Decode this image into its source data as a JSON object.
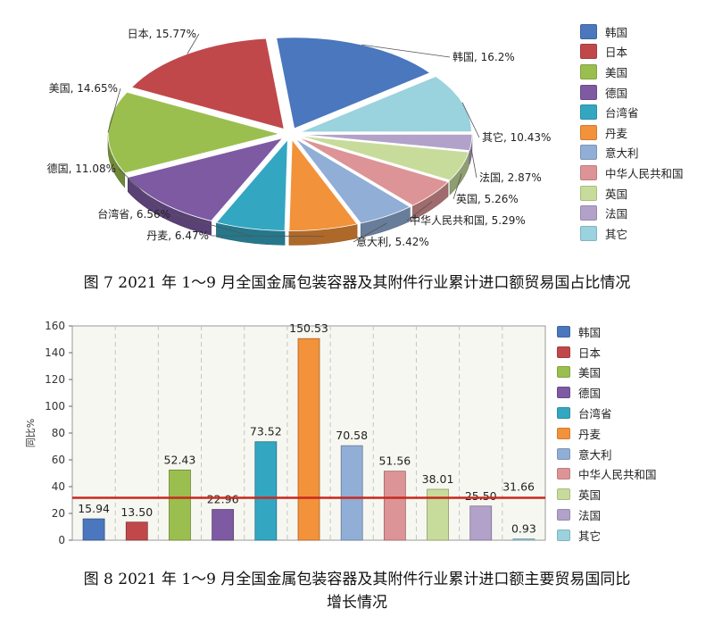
{
  "colors": {
    "韩国": "#4a77bd",
    "日本": "#c0484b",
    "美国": "#9bbf4f",
    "德国": "#7d5aa2",
    "台湾省": "#33a6c2",
    "丹麦": "#f2923a",
    "意大利": "#91aed6",
    "中华人民共和国": "#dd9496",
    "英国": "#c7dc9b",
    "法国": "#b2a2c9",
    "其它": "#9ad2de",
    "average_line": "#c8281e"
  },
  "legend": [
    "韩国",
    "日本",
    "美国",
    "德国",
    "台湾省",
    "丹麦",
    "意大利",
    "中华人民共和国",
    "英国",
    "法国",
    "其它"
  ],
  "chart_data": [
    {
      "type": "pie",
      "slices": [
        {
          "name": "韩国",
          "value": 16.2,
          "label": "韩国, 16.2%"
        },
        {
          "name": "其它",
          "value": 10.43,
          "label": "其它, 10.43%"
        },
        {
          "name": "法国",
          "value": 2.87,
          "label": "法国, 2.87%"
        },
        {
          "name": "英国",
          "value": 5.26,
          "label": "英国, 5.26%"
        },
        {
          "name": "中华人民共和国",
          "value": 5.29,
          "label": "中华人民共和国, 5.29%"
        },
        {
          "name": "意大利",
          "value": 5.42,
          "label": "意大利, 5.42%"
        },
        {
          "name": "丹麦",
          "value": 6.47,
          "label": "丹麦, 6.47%"
        },
        {
          "name": "台湾省",
          "value": 6.56,
          "label": "台湾省, 6.56%"
        },
        {
          "name": "德国",
          "value": 11.08,
          "label": "德国, 11.08%"
        },
        {
          "name": "美国",
          "value": 14.65,
          "label": "美国, 14.65%"
        },
        {
          "name": "日本",
          "value": 15.77,
          "label": "日本, 15.77%"
        }
      ],
      "unit": "%",
      "legend_position": "right",
      "style": "3d-exploded"
    },
    {
      "type": "bar",
      "categories": [
        "韩国",
        "日本",
        "美国",
        "德国",
        "台湾省",
        "丹麦",
        "意大利",
        "中华人民共和国",
        "英国",
        "法国",
        "其它"
      ],
      "values": [
        15.94,
        13.5,
        52.43,
        22.96,
        73.52,
        150.53,
        70.58,
        51.56,
        38.01,
        25.5,
        0.93
      ],
      "value_labels": [
        "15.94",
        "13.50",
        "52.43",
        "22.96",
        "73.52",
        "150.53",
        "70.58",
        "51.56",
        "38.01",
        "25.50",
        "0.93"
      ],
      "ylabel": "同比%",
      "ylim": [
        0,
        160
      ],
      "yticks": [
        0,
        20,
        40,
        60,
        80,
        100,
        120,
        140,
        160
      ],
      "reference_line": {
        "value": 31.66,
        "label": "31.66"
      },
      "grid": true,
      "legend_position": "right"
    }
  ],
  "captions": {
    "fig7": "图 7   2021 年 1～9 月全国金属包装容器及其附件行业累计进口额贸易国占比情况",
    "fig8_line1": "图 8   2021 年 1～9 月全国金属包装容器及其附件行业累计进口额主要贸易国同比",
    "fig8_line2": "增长情况"
  }
}
